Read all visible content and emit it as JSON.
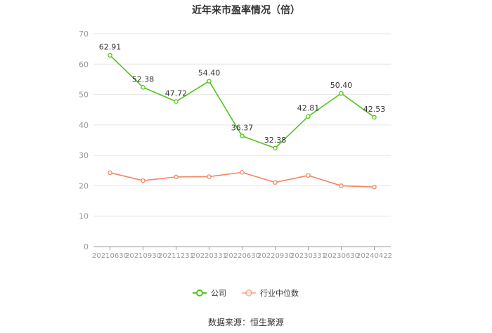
{
  "chart_data": {
    "type": "line",
    "title": "近年来市盈率情况（倍）",
    "source": "数据来源：恒生聚源",
    "xlabel": "",
    "ylabel": "",
    "categories": [
      "20210630",
      "20210930",
      "20211231",
      "20220331",
      "20220630",
      "20220930",
      "20230331",
      "20230630",
      "20240422"
    ],
    "ylim": [
      0,
      70
    ],
    "yticks": [
      0,
      10,
      20,
      30,
      40,
      50,
      60,
      70
    ],
    "grid": true,
    "legend_position": "bottom",
    "series": [
      {
        "name": "公司",
        "color": "#52c41a",
        "values": [
          62.91,
          52.38,
          47.72,
          54.4,
          36.37,
          32.38,
          42.81,
          50.4,
          42.53
        ],
        "labels": [
          "62.91",
          "52.38",
          "47.72",
          "54.40",
          "36.37",
          "32.38",
          "42.81",
          "50.40",
          "42.53"
        ]
      },
      {
        "name": "行业中位数",
        "color": "#f4845f",
        "values": [
          24.3,
          21.7,
          22.9,
          23.0,
          24.4,
          21.1,
          23.4,
          20.0,
          19.6
        ]
      }
    ]
  }
}
